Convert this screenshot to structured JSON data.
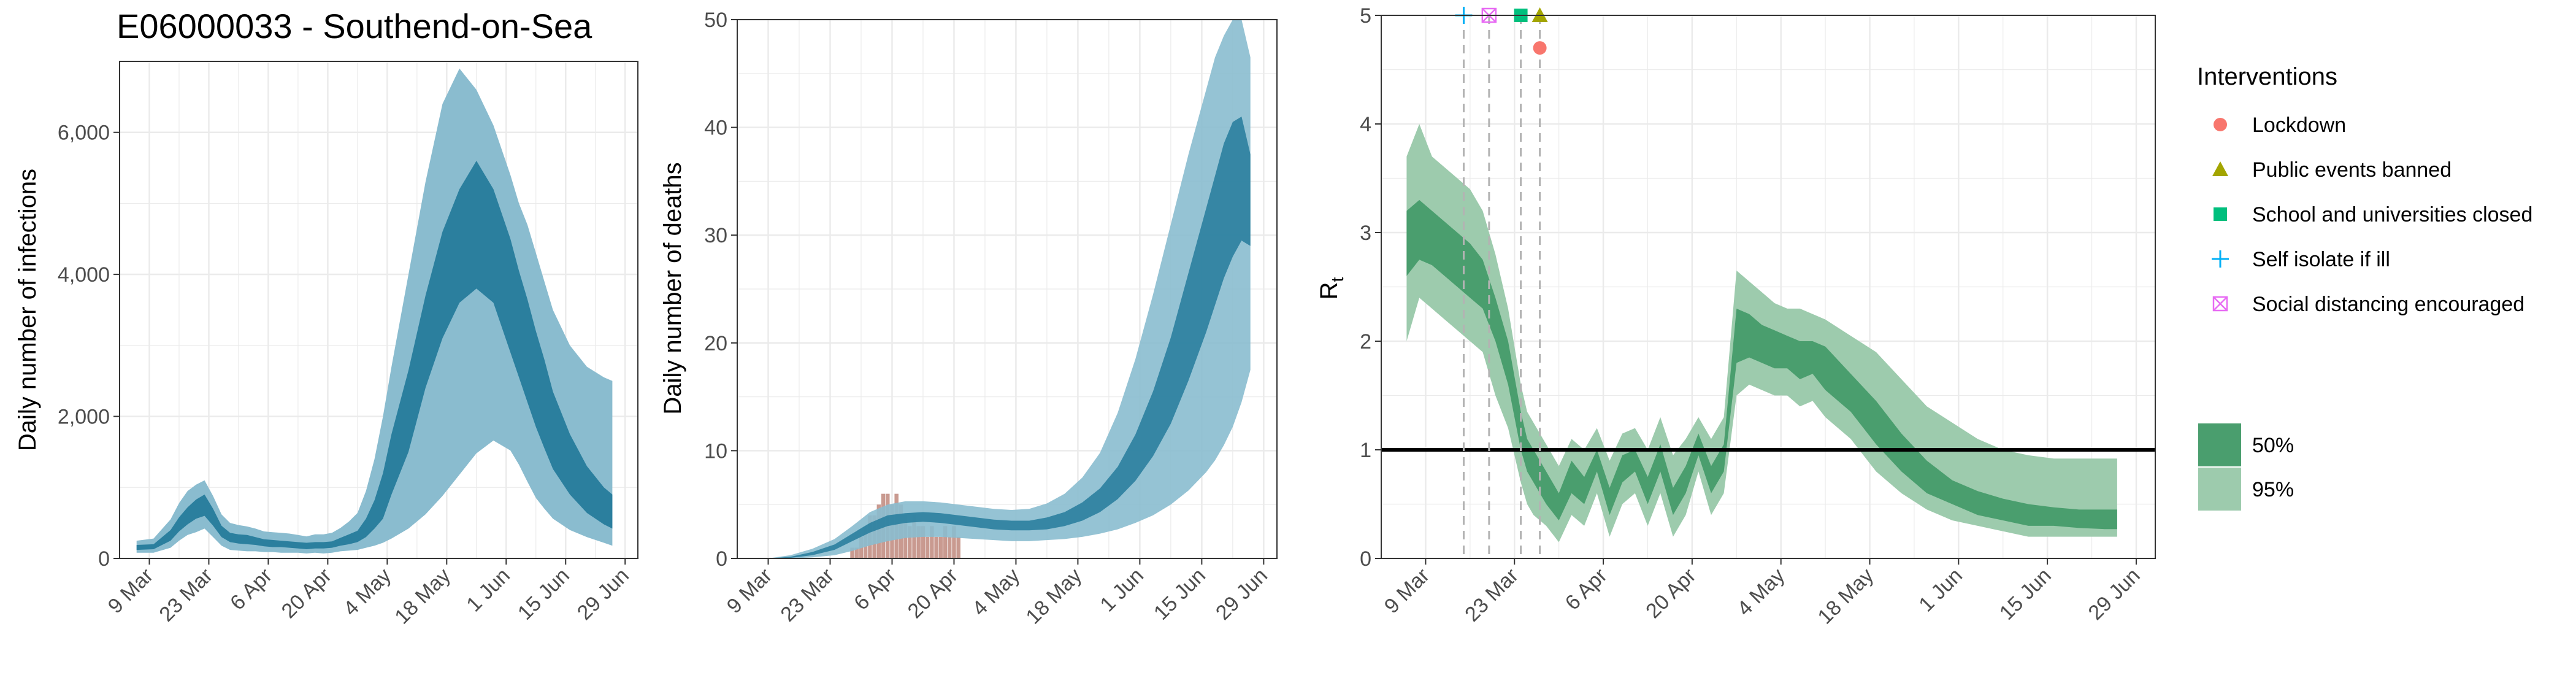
{
  "title": "E06000033 - Southend-on-Sea",
  "colors": {
    "dark_band": "#2b7f9e",
    "light_band": "#8abccf",
    "deaths_bar": "#c99a90",
    "rt_dark": "#4a9e6e",
    "rt_light": "#9dcbad",
    "grid": "#ebebeb",
    "lockdown": "#F8766D",
    "public_events": "#A3A500",
    "school": "#00BF7D",
    "self_isolate": "#00B0F6",
    "social_distancing": "#E76BF3"
  },
  "chart_data": [
    {
      "type": "area",
      "ylabel": "Daily number of infections",
      "ylim": [
        0,
        7000
      ],
      "yticks": [
        0,
        2000,
        4000,
        6000
      ],
      "ytick_labels": [
        "0",
        "2,000",
        "4,000",
        "6,000"
      ],
      "xticks": [
        9,
        23,
        37,
        51,
        65,
        79,
        93,
        107,
        121
      ],
      "xtick_labels": [
        "9 Mar",
        "23 Mar",
        "6 Apr",
        "20 Apr",
        "4 May",
        "18 May",
        "1 Jun",
        "15 Jun",
        "29 Jun"
      ],
      "xlim": [
        2,
        124
      ],
      "x": [
        6,
        10,
        14,
        16,
        18,
        20,
        22,
        24,
        26,
        28,
        30,
        32,
        34,
        36,
        38,
        40,
        42,
        44,
        46,
        48,
        50,
        52,
        54,
        56,
        58,
        60,
        62,
        64,
        66,
        70,
        74,
        78,
        82,
        86,
        90,
        94,
        96,
        98,
        100,
        102,
        104,
        108,
        112,
        116,
        118
      ],
      "lower95": [
        80,
        80,
        150,
        250,
        330,
        370,
        420,
        300,
        180,
        120,
        110,
        100,
        100,
        90,
        90,
        80,
        80,
        80,
        70,
        80,
        70,
        80,
        100,
        110,
        120,
        150,
        180,
        220,
        280,
        420,
        620,
        880,
        1180,
        1480,
        1660,
        1520,
        1320,
        1080,
        850,
        700,
        560,
        400,
        300,
        220,
        180
      ],
      "lower50": [
        120,
        130,
        250,
        380,
        480,
        560,
        600,
        460,
        300,
        230,
        210,
        200,
        190,
        170,
        160,
        160,
        150,
        140,
        130,
        140,
        140,
        150,
        180,
        200,
        230,
        300,
        420,
        560,
        900,
        1500,
        2400,
        3100,
        3600,
        3800,
        3600,
        2900,
        2550,
        2200,
        1850,
        1550,
        1260,
        900,
        640,
        480,
        420
      ],
      "median": [
        150,
        160,
        320,
        470,
        590,
        690,
        750,
        570,
        370,
        290,
        270,
        260,
        240,
        210,
        210,
        200,
        190,
        180,
        170,
        180,
        180,
        190,
        230,
        260,
        300,
        420,
        600,
        880,
        1300,
        2050,
        3000,
        3750,
        4300,
        4500,
        4300,
        3700,
        3350,
        2950,
        2550,
        2150,
        1750,
        1250,
        880,
        640,
        560
      ],
      "upper50": [
        190,
        200,
        400,
        580,
        720,
        830,
        900,
        700,
        460,
        360,
        340,
        330,
        300,
        270,
        260,
        250,
        240,
        230,
        220,
        230,
        230,
        240,
        290,
        340,
        390,
        560,
        820,
        1200,
        1750,
        2650,
        3700,
        4600,
        5200,
        5600,
        5200,
        4500,
        4050,
        3650,
        3200,
        2800,
        2350,
        1750,
        1300,
        1000,
        900
      ],
      "upper95": [
        250,
        280,
        550,
        780,
        950,
        1040,
        1100,
        880,
        620,
        500,
        470,
        450,
        420,
        380,
        370,
        360,
        350,
        330,
        310,
        340,
        340,
        360,
        430,
        520,
        640,
        950,
        1400,
        2000,
        2700,
        4000,
        5300,
        6400,
        6900,
        6600,
        6100,
        5400,
        5000,
        4700,
        4300,
        3900,
        3500,
        3000,
        2700,
        2550,
        2500
      ]
    },
    {
      "type": "area",
      "ylabel": "Daily number of deaths",
      "ylim": [
        0,
        50
      ],
      "yticks": [
        0,
        10,
        20,
        30,
        40,
        50
      ],
      "ytick_labels": [
        "0",
        "10",
        "20",
        "30",
        "40",
        "50"
      ],
      "xticks": [
        9,
        23,
        37,
        51,
        65,
        79,
        93,
        107,
        121
      ],
      "xtick_labels": [
        "9 Mar",
        "23 Mar",
        "6 Apr",
        "20 Apr",
        "4 May",
        "18 May",
        "1 Jun",
        "15 Jun",
        "29 Jun"
      ],
      "xlim": [
        2,
        124
      ],
      "x": [
        9,
        14,
        19,
        24,
        28,
        32,
        36,
        40,
        44,
        48,
        52,
        56,
        60,
        64,
        68,
        72,
        76,
        80,
        84,
        88,
        92,
        96,
        100,
        104,
        108,
        110,
        112,
        114,
        116,
        118
      ],
      "lower95": [
        0,
        0,
        0.1,
        0.3,
        0.7,
        1.2,
        1.6,
        1.9,
        2.0,
        2.0,
        1.9,
        1.8,
        1.7,
        1.6,
        1.6,
        1.7,
        1.8,
        2.0,
        2.3,
        2.7,
        3.3,
        4.0,
        5.0,
        6.3,
        8.0,
        9.1,
        10.5,
        12.2,
        14.5,
        17.5
      ],
      "lower50": [
        0,
        0.05,
        0.3,
        0.8,
        1.6,
        2.4,
        3.0,
        3.3,
        3.4,
        3.3,
        3.1,
        2.9,
        2.7,
        2.6,
        2.6,
        2.7,
        3.0,
        3.5,
        4.3,
        5.5,
        7.2,
        9.5,
        12.5,
        16.5,
        21.0,
        23.5,
        26.0,
        28.0,
        29.5,
        29.0
      ],
      "median": [
        0,
        0.1,
        0.4,
        1.0,
        1.9,
        2.8,
        3.4,
        3.7,
        3.8,
        3.7,
        3.5,
        3.3,
        3.1,
        3.0,
        3.0,
        3.2,
        3.6,
        4.3,
        5.3,
        6.8,
        9.0,
        12.0,
        15.8,
        20.5,
        25.5,
        28.0,
        30.5,
        32.5,
        33.5,
        33.0
      ],
      "upper50": [
        0,
        0.15,
        0.6,
        1.3,
        2.3,
        3.3,
        4.0,
        4.2,
        4.3,
        4.2,
        4.0,
        3.8,
        3.6,
        3.5,
        3.5,
        3.8,
        4.3,
        5.2,
        6.5,
        8.5,
        11.5,
        15.5,
        20.5,
        26.5,
        32.5,
        35.5,
        38.5,
        40.5,
        41.0,
        37.5
      ],
      "upper95": [
        0,
        0.3,
        0.9,
        1.8,
        3.0,
        4.3,
        5.0,
        5.3,
        5.3,
        5.2,
        5.0,
        4.8,
        4.6,
        4.5,
        4.6,
        5.1,
        6.0,
        7.5,
        9.8,
        13.5,
        18.5,
        24.5,
        31.0,
        37.5,
        43.5,
        46.5,
        48.5,
        50.0,
        50.0,
        46.5
      ],
      "bars": {
        "x": [
          28,
          29,
          30,
          31,
          32,
          33,
          34,
          35,
          36,
          37,
          38,
          39,
          40,
          41,
          42,
          43,
          44,
          45,
          46,
          47,
          48,
          49,
          50,
          51,
          52
        ],
        "values": [
          1,
          1,
          2,
          3,
          4,
          4,
          5,
          6,
          6,
          5,
          6,
          5,
          4,
          3,
          4,
          3,
          3,
          2,
          3,
          2,
          2,
          3,
          2,
          3,
          2
        ]
      }
    },
    {
      "type": "area",
      "ylabel": "R",
      "ylabel_sub": "t",
      "ylim": [
        0,
        5
      ],
      "yticks": [
        0,
        1,
        2,
        3,
        4,
        5
      ],
      "ytick_labels": [
        "0",
        "1",
        "2",
        "3",
        "4",
        "5"
      ],
      "xticks": [
        9,
        23,
        37,
        51,
        65,
        79,
        93,
        107,
        121
      ],
      "xtick_labels": [
        "9 Mar",
        "23 Mar",
        "6 Apr",
        "20 Apr",
        "4 May",
        "18 May",
        "1 Jun",
        "15 Jun",
        "29 Jun"
      ],
      "xlim": [
        2,
        124
      ],
      "reference_line": 1,
      "x": [
        6,
        8,
        10,
        12,
        14,
        16,
        18,
        20,
        22,
        24,
        25,
        26,
        28,
        30,
        32,
        34,
        36,
        38,
        40,
        42,
        44,
        46,
        48,
        50,
        52,
        54,
        56,
        58,
        60,
        62,
        64,
        66,
        68,
        70,
        72,
        76,
        80,
        84,
        88,
        92,
        96,
        100,
        104,
        108,
        112,
        116,
        118
      ],
      "lower95": [
        2.0,
        2.4,
        2.3,
        2.2,
        2.1,
        2.0,
        1.9,
        1.5,
        1.2,
        0.7,
        0.5,
        0.4,
        0.3,
        0.15,
        0.4,
        0.3,
        0.6,
        0.2,
        0.5,
        0.6,
        0.3,
        0.6,
        0.2,
        0.4,
        0.8,
        0.4,
        0.6,
        1.5,
        1.6,
        1.55,
        1.5,
        1.5,
        1.4,
        1.45,
        1.3,
        1.1,
        0.8,
        0.6,
        0.45,
        0.35,
        0.3,
        0.25,
        0.2,
        0.2,
        0.2,
        0.2,
        0.2
      ],
      "lower50": [
        2.6,
        2.75,
        2.7,
        2.6,
        2.5,
        2.4,
        2.3,
        2.0,
        1.6,
        1.0,
        0.8,
        0.7,
        0.5,
        0.35,
        0.6,
        0.5,
        0.8,
        0.4,
        0.7,
        0.8,
        0.5,
        0.8,
        0.4,
        0.6,
        0.95,
        0.6,
        0.8,
        1.8,
        1.85,
        1.8,
        1.75,
        1.75,
        1.65,
        1.7,
        1.55,
        1.35,
        1.05,
        0.8,
        0.6,
        0.5,
        0.4,
        0.35,
        0.3,
        0.3,
        0.28,
        0.27,
        0.27
      ],
      "median": [
        2.9,
        3.0,
        2.95,
        2.85,
        2.75,
        2.65,
        2.5,
        2.2,
        1.8,
        1.15,
        0.95,
        0.85,
        0.65,
        0.45,
        0.75,
        0.6,
        0.9,
        0.5,
        0.8,
        0.9,
        0.6,
        0.9,
        0.5,
        0.7,
        1.05,
        0.7,
        0.9,
        2.05,
        2.05,
        1.95,
        1.9,
        1.9,
        1.85,
        1.85,
        1.75,
        1.5,
        1.2,
        0.95,
        0.72,
        0.58,
        0.5,
        0.44,
        0.38,
        0.36,
        0.35,
        0.35,
        0.35
      ],
      "upper50": [
        3.2,
        3.3,
        3.2,
        3.1,
        3.0,
        2.9,
        2.75,
        2.4,
        2.0,
        1.35,
        1.1,
        1.0,
        0.8,
        0.6,
        0.9,
        0.75,
        1.0,
        0.65,
        0.95,
        1.0,
        0.75,
        1.05,
        0.65,
        0.85,
        1.15,
        0.85,
        1.05,
        2.3,
        2.25,
        2.15,
        2.1,
        2.05,
        2.0,
        2.0,
        1.95,
        1.7,
        1.45,
        1.15,
        0.9,
        0.72,
        0.62,
        0.55,
        0.5,
        0.47,
        0.45,
        0.45,
        0.45
      ],
      "upper95": [
        3.7,
        4.0,
        3.7,
        3.6,
        3.5,
        3.4,
        3.2,
        2.8,
        2.3,
        1.6,
        1.35,
        1.25,
        1.05,
        0.85,
        1.1,
        1.0,
        1.2,
        0.9,
        1.15,
        1.2,
        1.0,
        1.3,
        0.95,
        1.1,
        1.3,
        1.1,
        1.3,
        2.65,
        2.55,
        2.45,
        2.35,
        2.3,
        2.3,
        2.25,
        2.2,
        2.05,
        1.9,
        1.65,
        1.4,
        1.25,
        1.1,
        1.0,
        0.95,
        0.92,
        0.92,
        0.92,
        0.92
      ],
      "interventions": [
        {
          "name": "Self isolate if ill",
          "x": 15,
          "y": 5,
          "shape": "plus",
          "color_key": "self_isolate",
          "vline": true
        },
        {
          "name": "Social distancing encouraged",
          "x": 19,
          "y": 5,
          "shape": "boxcross",
          "color_key": "social_distancing",
          "vline": true
        },
        {
          "name": "School and universities closed",
          "x": 24,
          "y": 5,
          "shape": "square",
          "color_key": "school",
          "vline": true
        },
        {
          "name": "Public events banned",
          "x": 27,
          "y": 5,
          "shape": "triangle",
          "color_key": "public_events",
          "vline": true
        },
        {
          "name": "Lockdown",
          "x": 27,
          "y": 4.7,
          "shape": "circle",
          "color_key": "lockdown",
          "vline": false
        }
      ]
    }
  ],
  "legend": {
    "interventions_title": "Interventions",
    "interventions": [
      {
        "label": "Lockdown",
        "shape": "circle",
        "color_key": "lockdown"
      },
      {
        "label": "Public events banned",
        "shape": "triangle",
        "color_key": "public_events"
      },
      {
        "label": "School and universities closed",
        "shape": "square",
        "color_key": "school"
      },
      {
        "label": "Self isolate if ill",
        "shape": "plus",
        "color_key": "self_isolate"
      },
      {
        "label": "Social distancing encouraged",
        "shape": "boxcross",
        "color_key": "social_distancing"
      }
    ],
    "bands": [
      {
        "label": "50%",
        "color_key": "rt_dark"
      },
      {
        "label": "95%",
        "color_key": "rt_light"
      }
    ]
  }
}
